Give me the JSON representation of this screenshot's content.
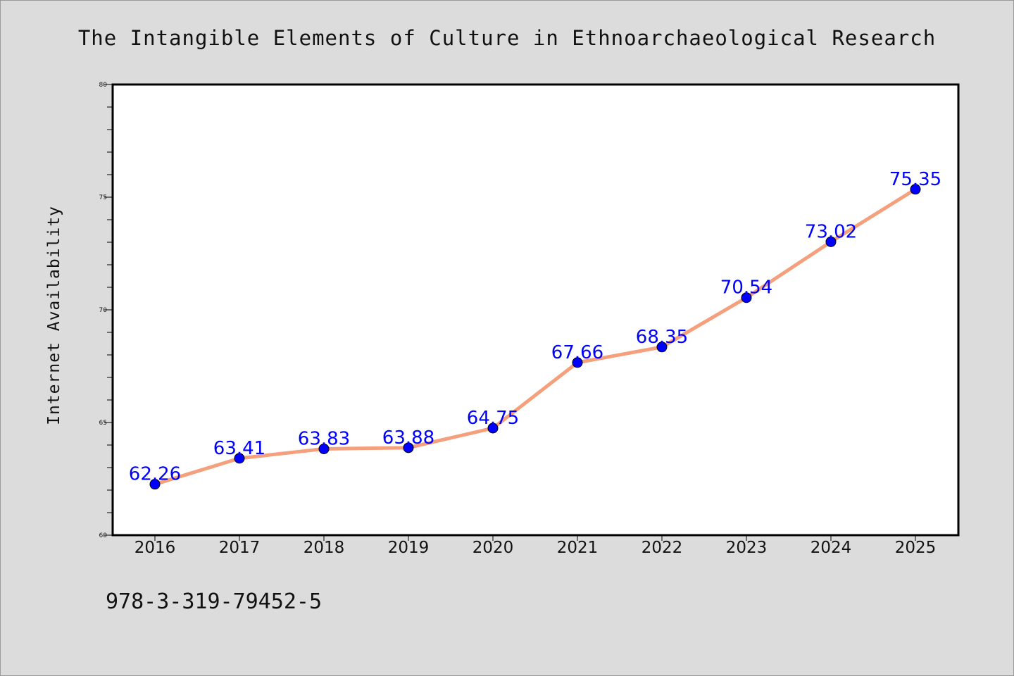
{
  "chart_data": {
    "type": "line",
    "title": "The Intangible Elements of Culture in Ethnoarchaeological Research",
    "xlabel": "",
    "ylabel": "Internet Availability",
    "x": [
      "2016",
      "2017",
      "2018",
      "2019",
      "2020",
      "2021",
      "2022",
      "2023",
      "2024",
      "2025"
    ],
    "series": [
      {
        "values": [
          62.26,
          63.41,
          63.83,
          63.88,
          64.75,
          67.66,
          68.35,
          70.54,
          73.02,
          75.35
        ],
        "data_labels": [
          "62.26",
          "63.41",
          "63.83",
          "63.88",
          "64.75",
          "67.66",
          "68.35",
          "70.54",
          "73.02",
          "75.35"
        ],
        "line_color": "#f4a07c",
        "marker_color": "#0000ff"
      }
    ],
    "ylim": [
      60,
      80
    ],
    "yticks": [
      "60",
      "65",
      "70",
      "75",
      "80"
    ],
    "grid": false,
    "legend": "none"
  },
  "footer": {
    "code": "978-3-319-79452-5"
  },
  "colors": {
    "background": "#dcdcdc",
    "plot_background": "#ffffff",
    "label_color": "#0000ff"
  }
}
